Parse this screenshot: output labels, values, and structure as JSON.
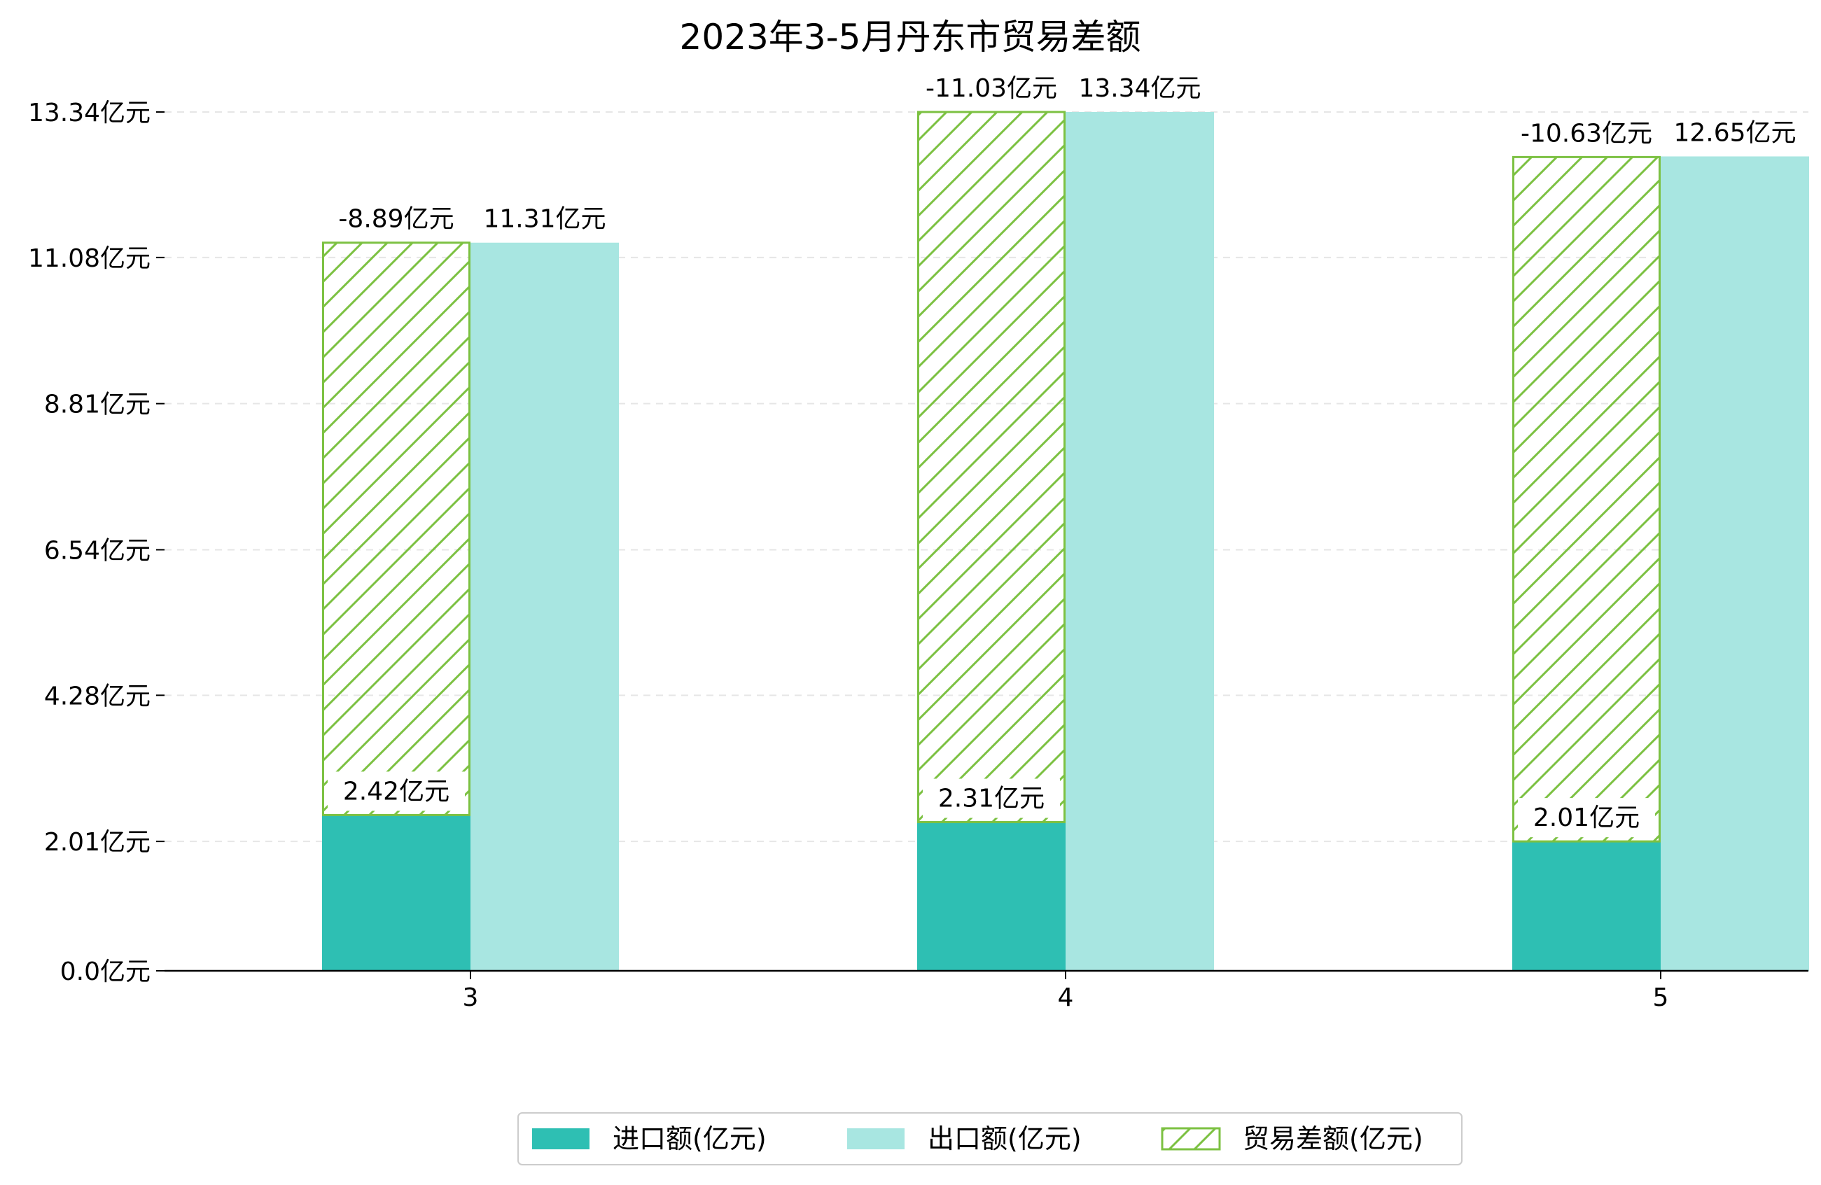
{
  "chart_data": {
    "type": "bar",
    "title": "2023年3-5月丹东市贸易差额",
    "xlabel": "",
    "ylabel": "",
    "categories": [
      "3",
      "4",
      "5"
    ],
    "series": [
      {
        "name": "进口额(亿元)",
        "values": [
          2.42,
          2.31,
          2.01
        ],
        "color": "#2ebfb3",
        "labels": [
          "2.42亿元",
          "2.31亿元",
          "2.01亿元"
        ]
      },
      {
        "name": "出口额(亿元)",
        "values": [
          11.31,
          13.34,
          12.65
        ],
        "color": "#a8e6e1",
        "labels": [
          "11.31亿元",
          "13.34亿元",
          "12.65亿元"
        ]
      },
      {
        "name": "贸易差额(亿元)",
        "values": [
          -8.89,
          -11.03,
          -10.63
        ],
        "color": "#7cc142",
        "pattern": "hatch",
        "stacked_on": "进口额(亿元)",
        "labels": [
          "-8.89亿元",
          "-11.03亿元",
          "-10.63亿元"
        ]
      }
    ],
    "yticks": [
      0.0,
      2.01,
      4.28,
      6.54,
      8.81,
      11.08,
      13.34
    ],
    "ytick_labels": [
      "0.0亿元",
      "2.01亿元",
      "4.28亿元",
      "6.54亿元",
      "8.81亿元",
      "11.08亿元",
      "13.34亿元"
    ],
    "ylim": [
      0,
      13.34
    ],
    "grid": "horizontal dashed",
    "legend_position": "bottom-center"
  }
}
